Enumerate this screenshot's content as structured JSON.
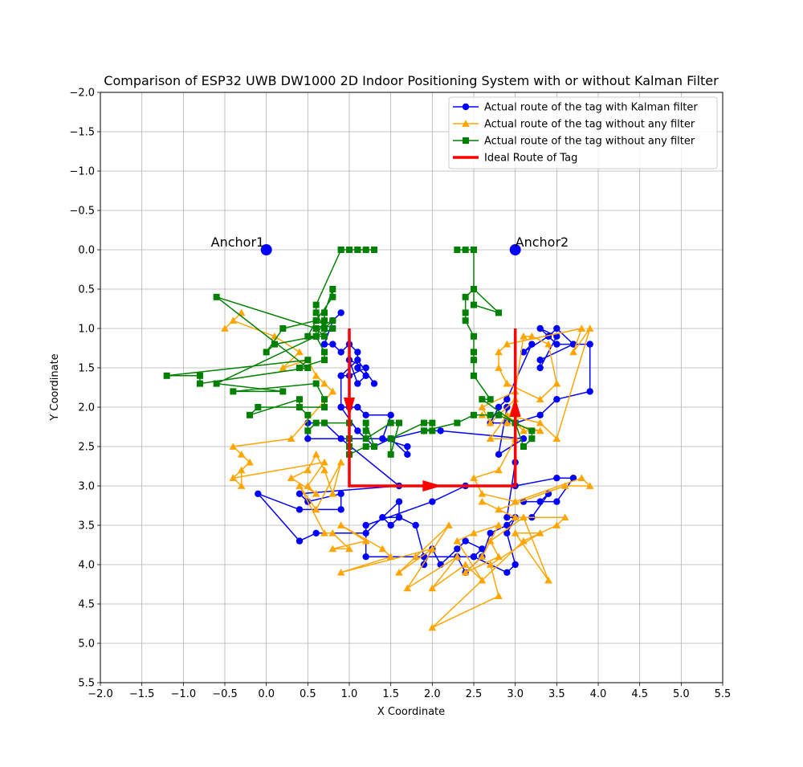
{
  "chart_data": {
    "type": "line",
    "title": "Comparison of ESP32 UWB DW1000 2D Indoor Positioning System with or without Kalman Filter",
    "xlabel": "X Coordinate",
    "ylabel": "Y Coordinate",
    "xlim": [
      -2.0,
      5.5
    ],
    "ylim": [
      5.5,
      -2.0
    ],
    "y_inverted": true,
    "grid": true,
    "legend_position": "top-right",
    "xticks": [
      "−2.0",
      "−1.5",
      "−1.0",
      "−0.5",
      "0.0",
      "0.5",
      "1.0",
      "1.5",
      "2.0",
      "2.5",
      "3.0",
      "3.5",
      "4.0",
      "4.5",
      "5.0",
      "5.5"
    ],
    "yticks": [
      "−2.0",
      "−1.5",
      "−1.0",
      "−0.5",
      "0.0",
      "0.5",
      "1.0",
      "1.5",
      "2.0",
      "2.5",
      "3.0",
      "3.5",
      "4.0",
      "4.5",
      "5.0",
      "5.5"
    ],
    "xtick_values": [
      -2.0,
      -1.5,
      -1.0,
      -0.5,
      0.0,
      0.5,
      1.0,
      1.5,
      2.0,
      2.5,
      3.0,
      3.5,
      4.0,
      4.5,
      5.0,
      5.5
    ],
    "ytick_values": [
      -2.0,
      -1.5,
      -1.0,
      -0.5,
      0.0,
      0.5,
      1.0,
      1.5,
      2.0,
      2.5,
      3.0,
      3.5,
      4.0,
      4.5,
      5.0,
      5.5
    ],
    "anchors": [
      {
        "label": "Anchor1",
        "x": 0.0,
        "y": 0.0,
        "color": "#0000ff"
      },
      {
        "label": "Anchor2",
        "x": 3.0,
        "y": 0.0,
        "color": "#0000ff"
      }
    ],
    "series": [
      {
        "name": "Actual route of the tag with Kalman filter",
        "color": "#0000ff",
        "marker": "circle",
        "points": [
          [
            0.9,
            0.8
          ],
          [
            0.8,
            0.9
          ],
          [
            0.7,
            1.2
          ],
          [
            0.8,
            1.2
          ],
          [
            0.9,
            1.3
          ],
          [
            1.0,
            1.2
          ],
          [
            1.1,
            1.3
          ],
          [
            1.1,
            1.5
          ],
          [
            1.2,
            1.6
          ],
          [
            1.1,
            1.7
          ],
          [
            1.0,
            1.4
          ],
          [
            1.2,
            1.5
          ],
          [
            1.0,
            1.6
          ],
          [
            0.9,
            1.6
          ],
          [
            0.9,
            2.0
          ],
          [
            1.0,
            2.0
          ],
          [
            1.1,
            2.0
          ],
          [
            1.2,
            2.1
          ],
          [
            1.5,
            2.1
          ],
          [
            1.4,
            2.4
          ],
          [
            1.7,
            2.5
          ],
          [
            1.7,
            2.6
          ],
          [
            1.5,
            2.4
          ],
          [
            1.0,
            2.4
          ],
          [
            0.5,
            2.4
          ],
          [
            0.5,
            2.2
          ],
          [
            0.7,
            2.2
          ],
          [
            0.9,
            2.4
          ],
          [
            1.6,
            3.0
          ],
          [
            0.4,
            3.1
          ],
          [
            0.5,
            3.2
          ],
          [
            0.9,
            3.1
          ],
          [
            0.9,
            3.3
          ],
          [
            0.4,
            3.3
          ],
          [
            -0.1,
            3.1
          ],
          [
            0.4,
            3.7
          ],
          [
            0.6,
            3.6
          ],
          [
            1.2,
            3.6
          ],
          [
            1.6,
            3.2
          ],
          [
            1.6,
            3.4
          ],
          [
            1.4,
            3.4
          ],
          [
            1.5,
            3.5
          ],
          [
            1.6,
            3.4
          ],
          [
            1.8,
            3.5
          ],
          [
            1.9,
            3.9
          ],
          [
            1.9,
            4.0
          ],
          [
            2.0,
            3.8
          ],
          [
            2.1,
            4.0
          ],
          [
            2.3,
            3.8
          ],
          [
            2.4,
            3.7
          ],
          [
            2.6,
            3.8
          ],
          [
            2.5,
            3.9
          ],
          [
            2.3,
            3.9
          ],
          [
            2.4,
            4.1
          ],
          [
            2.6,
            3.9
          ],
          [
            2.7,
            3.6
          ],
          [
            2.9,
            3.5
          ],
          [
            3.0,
            3.4
          ],
          [
            2.9,
            3.6
          ],
          [
            3.0,
            4.0
          ],
          [
            2.9,
            4.1
          ],
          [
            2.5,
            3.9
          ],
          [
            1.2,
            3.9
          ],
          [
            1.2,
            3.5
          ],
          [
            2.0,
            3.2
          ],
          [
            2.4,
            3.0
          ],
          [
            3.0,
            3.0
          ],
          [
            3.5,
            2.9
          ],
          [
            3.7,
            2.9
          ],
          [
            3.5,
            3.2
          ],
          [
            3.1,
            3.2
          ],
          [
            3.3,
            3.2
          ],
          [
            3.4,
            3.1
          ],
          [
            3.2,
            3.4
          ],
          [
            2.9,
            3.4
          ],
          [
            3.0,
            2.7
          ],
          [
            3.0,
            2.2
          ],
          [
            3.3,
            2.1
          ],
          [
            3.5,
            1.9
          ],
          [
            3.9,
            1.8
          ],
          [
            3.9,
            1.2
          ],
          [
            3.5,
            1.2
          ],
          [
            3.3,
            1.0
          ],
          [
            3.5,
            1.1
          ],
          [
            3.3,
            1.5
          ],
          [
            3.3,
            1.4
          ],
          [
            3.7,
            1.2
          ],
          [
            3.5,
            1.0
          ],
          [
            3.4,
            1.1
          ],
          [
            3.1,
            1.3
          ],
          [
            3.2,
            1.2
          ],
          [
            2.9,
            1.9
          ],
          [
            2.8,
            2.0
          ],
          [
            2.7,
            2.2
          ],
          [
            2.9,
            2.2
          ],
          [
            2.9,
            2.0
          ],
          [
            2.8,
            2.6
          ],
          [
            3.1,
            2.4
          ],
          [
            2.1,
            2.3
          ],
          [
            1.9,
            2.3
          ],
          [
            1.5,
            2.4
          ],
          [
            1.3,
            2.5
          ],
          [
            1.1,
            2.3
          ],
          [
            0.9,
            2.0
          ],
          [
            0.9,
            1.6
          ],
          [
            1.1,
            1.4
          ],
          [
            1.3,
            1.7
          ]
        ]
      },
      {
        "name": "Actual route of the tag without any filter",
        "color": "#ffa500",
        "marker": "triangle",
        "points": [
          [
            -0.3,
            0.8
          ],
          [
            -0.5,
            1.0
          ],
          [
            -0.4,
            0.9
          ],
          [
            0.1,
            1.1
          ],
          [
            0.4,
            1.3
          ],
          [
            0.2,
            1.5
          ],
          [
            0.5,
            1.4
          ],
          [
            0.6,
            1.6
          ],
          [
            0.7,
            1.7
          ],
          [
            0.8,
            1.8
          ],
          [
            0.3,
            2.4
          ],
          [
            -0.4,
            2.5
          ],
          [
            -0.3,
            2.6
          ],
          [
            -0.2,
            2.7
          ],
          [
            -0.4,
            2.9
          ],
          [
            -0.3,
            2.8
          ],
          [
            -0.3,
            3.0
          ],
          [
            -0.4,
            2.9
          ],
          [
            0.7,
            2.7
          ],
          [
            0.5,
            3.0
          ],
          [
            0.6,
            3.1
          ],
          [
            0.3,
            2.9
          ],
          [
            0.5,
            2.8
          ],
          [
            0.6,
            2.6
          ],
          [
            0.7,
            2.8
          ],
          [
            0.8,
            3.1
          ],
          [
            0.9,
            2.7
          ],
          [
            0.6,
            3.3
          ],
          [
            0.4,
            3.0
          ],
          [
            0.7,
            3.6
          ],
          [
            0.8,
            3.6
          ],
          [
            1.0,
            3.8
          ],
          [
            0.8,
            3.8
          ],
          [
            1.2,
            3.7
          ],
          [
            0.9,
            3.5
          ],
          [
            1.4,
            3.8
          ],
          [
            1.5,
            3.9
          ],
          [
            0.9,
            4.1
          ],
          [
            2.0,
            3.8
          ],
          [
            1.6,
            4.1
          ],
          [
            1.8,
            3.9
          ],
          [
            2.2,
            3.5
          ],
          [
            1.7,
            4.3
          ],
          [
            2.3,
            3.9
          ],
          [
            2.0,
            4.3
          ],
          [
            2.4,
            4.0
          ],
          [
            2.6,
            4.2
          ],
          [
            2.3,
            3.7
          ],
          [
            2.5,
            3.6
          ],
          [
            2.8,
            3.5
          ],
          [
            2.6,
            3.9
          ],
          [
            2.4,
            4.1
          ],
          [
            2.8,
            3.9
          ],
          [
            2.7,
            3.7
          ],
          [
            3.1,
            3.4
          ],
          [
            3.4,
            4.2
          ],
          [
            3.0,
            3.6
          ],
          [
            3.3,
            3.6
          ],
          [
            2.7,
            4.0
          ],
          [
            2.8,
            4.4
          ],
          [
            2.0,
            4.8
          ],
          [
            3.1,
            3.7
          ],
          [
            3.5,
            3.5
          ],
          [
            3.6,
            3.4
          ],
          [
            3.0,
            3.4
          ],
          [
            2.6,
            3.2
          ],
          [
            2.8,
            3.3
          ],
          [
            3.6,
            3.0
          ],
          [
            3.9,
            3.0
          ],
          [
            3.8,
            2.9
          ],
          [
            3.0,
            3.2
          ],
          [
            2.6,
            3.1
          ],
          [
            2.5,
            2.9
          ],
          [
            2.8,
            2.8
          ],
          [
            3.0,
            2.4
          ],
          [
            2.7,
            2.4
          ],
          [
            2.9,
            2.1
          ],
          [
            3.1,
            2.3
          ],
          [
            3.3,
            2.3
          ],
          [
            2.9,
            2.2
          ],
          [
            3.0,
            1.9
          ],
          [
            2.7,
            2.2
          ],
          [
            2.6,
            2.0
          ],
          [
            3.0,
            1.8
          ],
          [
            3.1,
            1.1
          ],
          [
            3.2,
            1.1
          ],
          [
            3.4,
            1.2
          ],
          [
            3.5,
            1.7
          ],
          [
            3.3,
            1.9
          ],
          [
            2.9,
            1.7
          ],
          [
            2.8,
            1.5
          ],
          [
            2.8,
            1.3
          ],
          [
            2.9,
            1.2
          ],
          [
            3.8,
            1.0
          ],
          [
            3.7,
            1.3
          ],
          [
            3.9,
            1.0
          ],
          [
            3.5,
            2.4
          ],
          [
            3.3,
            2.2
          ],
          [
            2.9,
            2.1
          ],
          [
            2.6,
            2.1
          ]
        ]
      },
      {
        "name": "Actual route of the tag without any filter",
        "color": "#008000",
        "marker": "square",
        "points": [
          [
            0.9,
            0.0
          ],
          [
            1.0,
            0.0
          ],
          [
            1.1,
            0.0
          ],
          [
            1.2,
            0.0
          ],
          [
            1.3,
            0.0
          ],
          [
            1.1,
            0.0
          ],
          [
            0.9,
            0.0
          ],
          [
            0.6,
            0.7
          ],
          [
            0.6,
            0.8
          ],
          [
            0.7,
            1.0
          ],
          [
            0.8,
            0.9
          ],
          [
            0.6,
            1.0
          ],
          [
            0.7,
            1.1
          ],
          [
            0.5,
            1.1
          ],
          [
            0.6,
            0.9
          ],
          [
            0.8,
            0.6
          ],
          [
            0.8,
            0.5
          ],
          [
            0.7,
            0.8
          ],
          [
            0.7,
            0.9
          ],
          [
            0.6,
            1.1
          ],
          [
            0.7,
            1.3
          ],
          [
            0.7,
            1.4
          ],
          [
            0.4,
            1.5
          ],
          [
            0.5,
            1.4
          ],
          [
            -1.2,
            1.6
          ],
          [
            -0.8,
            1.6
          ],
          [
            -0.8,
            1.7
          ],
          [
            0.5,
            1.5
          ],
          [
            -0.6,
            0.6
          ],
          [
            0.6,
            1.0
          ],
          [
            0.6,
            1.1
          ],
          [
            0.1,
            1.2
          ],
          [
            0.0,
            1.3
          ],
          [
            0.2,
            1.0
          ],
          [
            0.6,
            0.9
          ],
          [
            0.8,
            1.0
          ],
          [
            -0.6,
            1.7
          ],
          [
            0.2,
            1.8
          ],
          [
            -0.4,
            1.8
          ],
          [
            0.6,
            1.7
          ],
          [
            0.7,
            1.9
          ],
          [
            0.7,
            2.0
          ],
          [
            -0.1,
            2.0
          ],
          [
            -0.2,
            2.1
          ],
          [
            0.4,
            1.9
          ],
          [
            0.4,
            2.0
          ],
          [
            0.5,
            2.1
          ],
          [
            0.5,
            2.3
          ],
          [
            0.6,
            2.2
          ],
          [
            0.7,
            2.2
          ],
          [
            1.0,
            2.2
          ],
          [
            1.0,
            2.4
          ],
          [
            1.0,
            2.5
          ],
          [
            1.0,
            2.6
          ],
          [
            1.2,
            2.5
          ],
          [
            1.3,
            2.5
          ],
          [
            1.2,
            2.2
          ],
          [
            1.2,
            2.3
          ],
          [
            1.2,
            2.4
          ],
          [
            1.5,
            2.2
          ],
          [
            1.6,
            2.2
          ],
          [
            1.5,
            2.6
          ],
          [
            1.5,
            2.4
          ],
          [
            1.9,
            2.2
          ],
          [
            2.0,
            2.2
          ],
          [
            2.0,
            2.3
          ],
          [
            1.9,
            2.3
          ],
          [
            2.3,
            2.2
          ],
          [
            2.5,
            2.1
          ],
          [
            2.7,
            2.1
          ],
          [
            2.8,
            2.1
          ],
          [
            3.0,
            2.2
          ],
          [
            3.1,
            2.5
          ],
          [
            3.2,
            2.4
          ],
          [
            3.2,
            2.3
          ],
          [
            3.0,
            2.2
          ],
          [
            2.6,
            1.9
          ],
          [
            2.7,
            1.9
          ],
          [
            2.5,
            1.6
          ],
          [
            2.5,
            1.4
          ],
          [
            2.5,
            1.3
          ],
          [
            2.5,
            1.1
          ],
          [
            2.4,
            0.9
          ],
          [
            2.4,
            0.8
          ],
          [
            2.4,
            0.6
          ],
          [
            2.5,
            0.5
          ],
          [
            2.8,
            0.8
          ],
          [
            2.5,
            0.7
          ],
          [
            2.5,
            0.0
          ],
          [
            2.4,
            0.0
          ],
          [
            2.3,
            0.0
          ],
          [
            2.5,
            0.0
          ]
        ]
      },
      {
        "name": "Ideal Route of Tag",
        "color": "#ff0000",
        "marker": "arrow",
        "points": [
          [
            1.0,
            1.0
          ],
          [
            1.0,
            3.0
          ],
          [
            3.0,
            3.0
          ],
          [
            3.0,
            1.0
          ]
        ]
      }
    ]
  }
}
